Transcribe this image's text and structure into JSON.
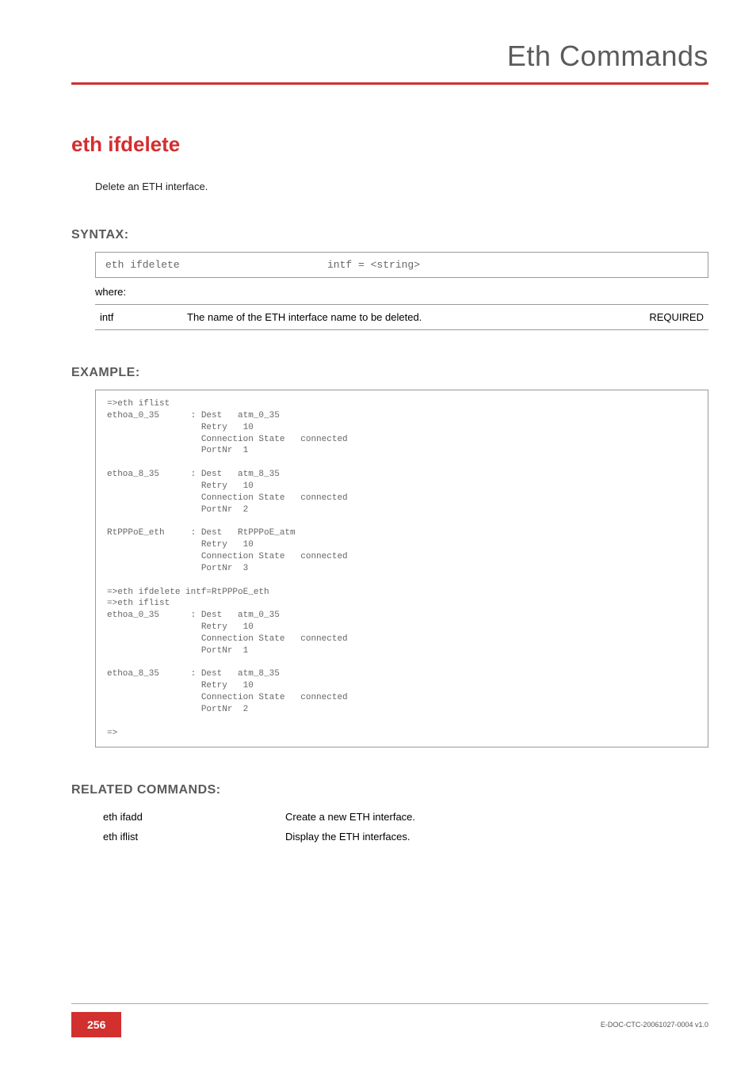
{
  "header": {
    "title": "Eth Commands"
  },
  "command": {
    "title": "eth ifdelete",
    "description": "Delete an ETH interface."
  },
  "syntax": {
    "label": "SYNTAX:",
    "cmd": "eth ifdelete",
    "args": "intf = <string>",
    "where": "where:",
    "params": [
      {
        "name": "intf",
        "desc": "The name of the ETH interface name to be deleted.",
        "req": "REQUIRED"
      }
    ]
  },
  "example": {
    "label": "EXAMPLE:",
    "text": "=>eth iflist\nethoa_0_35      : Dest   atm_0_35\n                  Retry   10\n                  Connection State   connected\n                  PortNr  1\n\nethoa_8_35      : Dest   atm_8_35\n                  Retry   10\n                  Connection State   connected\n                  PortNr  2\n\nRtPPPoE_eth     : Dest   RtPPPoE_atm\n                  Retry   10\n                  Connection State   connected\n                  PortNr  3\n\n=>eth ifdelete intf=RtPPPoE_eth\n=>eth iflist\nethoa_0_35      : Dest   atm_0_35\n                  Retry   10\n                  Connection State   connected\n                  PortNr  1\n\nethoa_8_35      : Dest   atm_8_35\n                  Retry   10\n                  Connection State   connected\n                  PortNr  2\n\n=>"
  },
  "related": {
    "label": "RELATED COMMANDS:",
    "items": [
      {
        "cmd": "eth ifadd",
        "desc": "Create a new ETH interface."
      },
      {
        "cmd": "eth iflist",
        "desc": "Display the ETH interfaces."
      }
    ]
  },
  "footer": {
    "page": "256",
    "docid": "E-DOC-CTC-20061027-0004 v1.0"
  },
  "colors": {
    "accent": "#d22f2f",
    "gray_text": "#5b5b5b",
    "border": "#999999"
  }
}
